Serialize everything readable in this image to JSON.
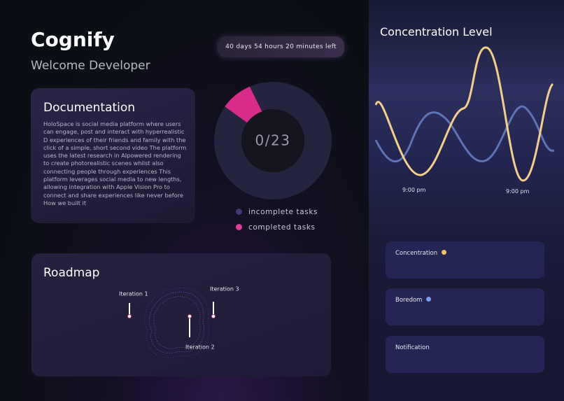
{
  "header": {
    "title": "Cognify",
    "subtitle": "Welcome Developer",
    "timer": "40 days 54 hours 20 minutes left"
  },
  "documentation": {
    "title": "Documentation",
    "body": "HoloSpace is social media platform where users can engage, post and interact with hyperrealistic D experiences of their friends and family with the click of a simple, short  second video The platform uses the latest research in AIpowered rendering to create photorealistic scenes whilst also connecting people through experiences This platform leverages social media to new lengths, allowing integration with Apple Vision Pro to connect and share experiences like never before How we built it"
  },
  "tasks": {
    "progress": "0/23",
    "legend": [
      "incomplete tasks",
      "completed tasks"
    ]
  },
  "roadmap": {
    "title": "Roadmap",
    "iterations": [
      "Iteration 1",
      "Iteration 2",
      "Iteration 3"
    ]
  },
  "concentration": {
    "title": "Concentration Level",
    "time_labels": [
      "9:00 pm",
      "9:00 pm"
    ]
  },
  "metrics": [
    "Concentration",
    "Boredom",
    "Notification"
  ]
}
